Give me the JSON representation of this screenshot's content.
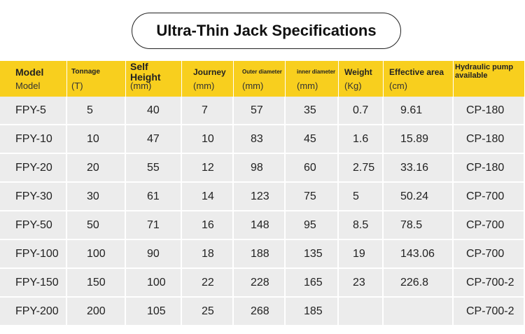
{
  "header": {
    "title": "Ultra-Thin Jack Specifications"
  },
  "table": {
    "columns": [
      {
        "name": "Model",
        "unit": "Model"
      },
      {
        "name": "Tonnage",
        "unit": "(T)"
      },
      {
        "name": "Self Height",
        "unit": "(mm)"
      },
      {
        "name": "Journey",
        "unit": "(mm)"
      },
      {
        "name": "Outer diameter",
        "unit": "(mm)"
      },
      {
        "name": "inner diameter",
        "unit": "(mm)"
      },
      {
        "name": "Weight",
        "unit": "(Kg)"
      },
      {
        "name": "Effective area",
        "unit": "(cm)"
      },
      {
        "name": "Hydraulic pump available",
        "unit": null
      }
    ],
    "rows": [
      [
        "FPY-5",
        "5",
        "40",
        "7",
        "57",
        "35",
        "0.7",
        "9.61",
        "CP-180"
      ],
      [
        "FPY-10",
        "10",
        "47",
        "10",
        "83",
        "45",
        "1.6",
        "15.89",
        "CP-180"
      ],
      [
        "FPY-20",
        "20",
        "55",
        "12",
        "98",
        "60",
        "2.75",
        "33.16",
        "CP-180"
      ],
      [
        "FPY-30",
        "30",
        "61",
        "14",
        "123",
        "75",
        "5",
        "50.24",
        "CP-700"
      ],
      [
        "FPY-50",
        "50",
        "71",
        "16",
        "148",
        "95",
        "8.5",
        "78.5",
        "CP-700"
      ],
      [
        "FPY-100",
        "100",
        "90",
        "18",
        "188",
        "135",
        "19",
        "143.06",
        "CP-700"
      ],
      [
        "FPY-150",
        "150",
        "100",
        "22",
        "228",
        "165",
        "23",
        "226.8",
        "CP-700-2"
      ],
      [
        "FPY-200",
        "200",
        "105",
        "25",
        "268",
        "185",
        null,
        null,
        "CP-700-2"
      ]
    ]
  }
}
